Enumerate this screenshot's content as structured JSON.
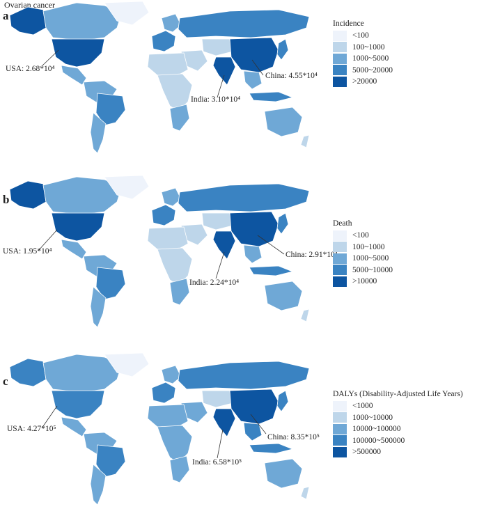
{
  "figure_title": "Ovarian cancer",
  "colors": {
    "c1": "#eef3fb",
    "c2": "#bed6ea",
    "c3": "#6fa8d6",
    "c4": "#3a83c2",
    "c5": "#0d55a1"
  },
  "panels": [
    {
      "letter": "a",
      "legend_title": "Incidence",
      "legend": [
        "<100",
        "100~1000",
        "1000~5000",
        "5000~20000",
        ">20000"
      ],
      "callouts": {
        "usa": "USA: 2.68*10⁴",
        "india": "India: 3.10*10⁴",
        "china": "China: 4.55*10⁴"
      }
    },
    {
      "letter": "b",
      "legend_title": "Death",
      "legend": [
        "<100",
        "100~1000",
        "1000~5000",
        "5000~10000",
        ">10000"
      ],
      "callouts": {
        "usa": "USA: 1.95*10⁴",
        "india": "India: 2.24*10⁴",
        "china": "China: 2.91*10⁴"
      }
    },
    {
      "letter": "c",
      "legend_title": "DALYs (Disability-Adjusted Life Years)",
      "legend": [
        "<1000",
        "1000~10000",
        "10000~100000",
        "100000~500000",
        ">500000"
      ],
      "callouts": {
        "usa": "USA: 4.27*10⁵",
        "india": "India: 6.58*10⁵",
        "china": "China: 8.35*10⁵"
      }
    }
  ]
}
